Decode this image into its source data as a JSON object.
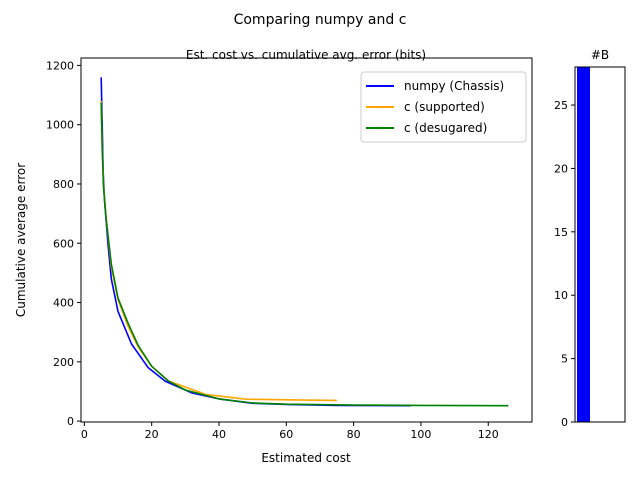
{
  "figure": {
    "suptitle": "Comparing numpy and c"
  },
  "chart_data": [
    {
      "type": "line",
      "title": "Est. cost vs. cumulative avg. error (bits)",
      "xlabel": "Estimated cost",
      "ylabel": "Cumulative average error",
      "xlim": [
        -1,
        133
      ],
      "ylim": [
        -3,
        1225
      ],
      "xticks": [
        0,
        20,
        40,
        60,
        80,
        100,
        120
      ],
      "yticks": [
        0,
        200,
        400,
        600,
        800,
        1000,
        1200
      ],
      "grid": false,
      "legend_position": "top-right",
      "series": [
        {
          "name": "numpy (Chassis)",
          "color": "#0000ff",
          "points": [
            [
              5,
              1160
            ],
            [
              5.3,
              1000
            ],
            [
              5.6,
              840
            ],
            [
              6,
              740
            ],
            [
              7,
              600
            ],
            [
              8,
              480
            ],
            [
              10,
              370
            ],
            [
              14,
              260
            ],
            [
              19,
              180
            ],
            [
              24,
              135
            ],
            [
              32,
              95
            ],
            [
              40,
              75
            ],
            [
              50,
              60
            ],
            [
              60,
              56
            ],
            [
              75,
              53
            ],
            [
              97,
              52
            ]
          ]
        },
        {
          "name": "c (supported)",
          "color": "#ffa500",
          "points": [
            [
              5,
              1080
            ],
            [
              5.3,
              930
            ],
            [
              5.7,
              800
            ],
            [
              6.5,
              680
            ],
            [
              8,
              520
            ],
            [
              10,
              410
            ],
            [
              13,
              320
            ],
            [
              16,
              250
            ],
            [
              20,
              185
            ],
            [
              25,
              135
            ],
            [
              30,
              115
            ],
            [
              36,
              90
            ],
            [
              48,
              74
            ],
            [
              60,
              72
            ],
            [
              75,
              70
            ]
          ]
        },
        {
          "name": "c (desugared)",
          "color": "#008000",
          "points": [
            [
              5,
              1075
            ],
            [
              5.3,
              920
            ],
            [
              5.7,
              790
            ],
            [
              6.5,
              680
            ],
            [
              8,
              530
            ],
            [
              10,
              415
            ],
            [
              13,
              330
            ],
            [
              16,
              255
            ],
            [
              20,
              185
            ],
            [
              25,
              135
            ],
            [
              30,
              105
            ],
            [
              40,
              75
            ],
            [
              50,
              61
            ],
            [
              60,
              57
            ],
            [
              80,
              54
            ],
            [
              100,
              53
            ],
            [
              126,
              52
            ]
          ]
        }
      ]
    },
    {
      "type": "bar",
      "title": "#B",
      "xlabel": "",
      "ylabel": "",
      "ylim": [
        0,
        28
      ],
      "yticks": [
        0,
        5,
        10,
        15,
        20,
        25
      ],
      "bars": [
        {
          "value": 28,
          "color": "#0000ff"
        }
      ]
    }
  ]
}
